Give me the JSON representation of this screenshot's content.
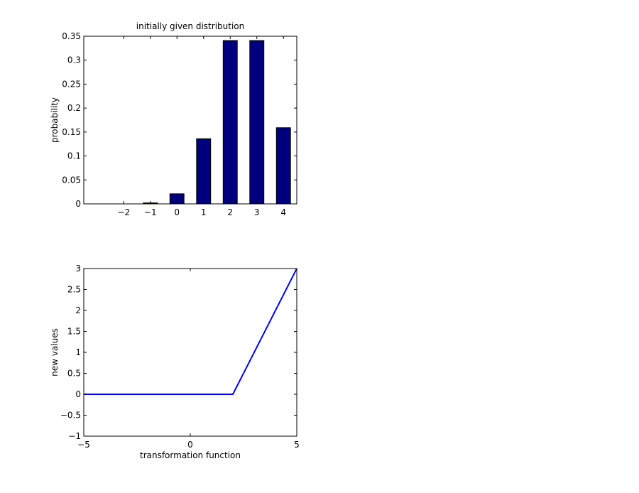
{
  "colors": {
    "bar_fill": "#00007f",
    "bar_edge": "#000000",
    "line": "#0000ff",
    "axes": "#000000",
    "background": "#ffffff"
  },
  "chart_data": [
    {
      "type": "bar",
      "title": "initially given distribution",
      "xlabel": "",
      "ylabel": "probability",
      "categories": [
        "-2",
        "-1",
        "0",
        "1",
        "2",
        "3",
        "4"
      ],
      "x": [
        -2,
        -1,
        0,
        1,
        2,
        3,
        4
      ],
      "values": [
        0.0,
        0.002,
        0.021,
        0.136,
        0.341,
        0.341,
        0.159
      ],
      "xlim": [
        -3.5,
        4.5
      ],
      "ylim": [
        0,
        0.35
      ],
      "xticks": [
        -2,
        -1,
        0,
        1,
        2,
        3,
        4
      ],
      "xtick_labels": [
        "−2",
        "−1",
        "0",
        "1",
        "2",
        "3",
        "4"
      ],
      "yticks": [
        0,
        0.05,
        0.1,
        0.15,
        0.2,
        0.25,
        0.3,
        0.35
      ],
      "ytick_labels": [
        "0",
        "0.05",
        "0.1",
        "0.15",
        "0.2",
        "0.25",
        "0.3",
        "0.35"
      ],
      "grid": false,
      "legend": "none"
    },
    {
      "type": "line",
      "title": "",
      "xlabel": "transformation function",
      "ylabel": "new values",
      "series": [
        {
          "x": [
            -5,
            2,
            5
          ],
          "y": [
            0,
            0,
            3
          ]
        }
      ],
      "xlim": [
        -5,
        5
      ],
      "ylim": [
        -1,
        3
      ],
      "xticks": [
        -5,
        0,
        5
      ],
      "xtick_labels": [
        "−5",
        "0",
        "5"
      ],
      "yticks": [
        -1,
        -0.5,
        0,
        0.5,
        1,
        1.5,
        2,
        2.5,
        3
      ],
      "ytick_labels": [
        "−1",
        "−0.5",
        "0",
        "0.5",
        "1",
        "1.5",
        "2",
        "2.5",
        "3"
      ],
      "grid": false,
      "legend": "none"
    }
  ]
}
